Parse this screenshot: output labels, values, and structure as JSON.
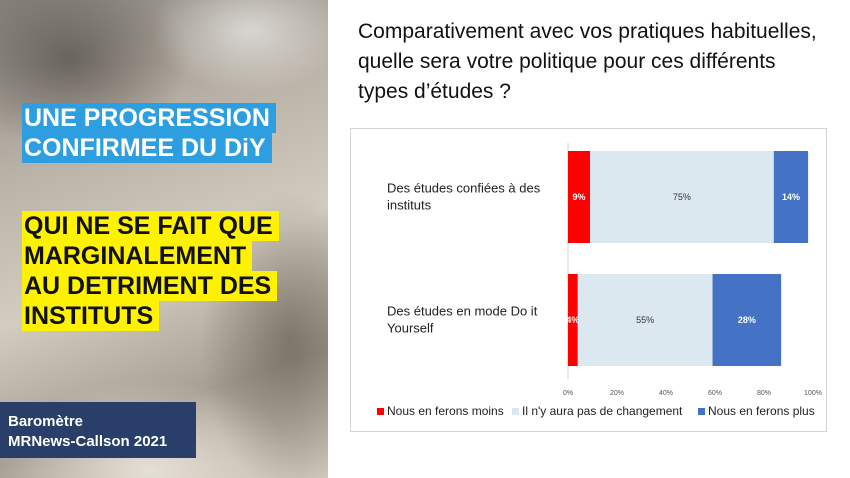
{
  "left": {
    "headline_blue": [
      "UNE PROGRESSION",
      "CONFIRMEE DU DiY"
    ],
    "headline_yellow": [
      "QUI NE SE FAIT QUE",
      "MARGINALEMENT",
      "AU DETRIMENT DES",
      "INSTITUTS"
    ],
    "footer": [
      "Baromètre",
      "MRNews-Callson 2021"
    ]
  },
  "question": "Comparativement avec vos pratiques habituelles, quelle sera votre politique pour ces différents types d’études ?",
  "chart_data": {
    "type": "bar",
    "orientation": "horizontal",
    "stacked": "100%",
    "categories": [
      [
        "Des études confiées à des",
        "instituts"
      ],
      [
        "Des études en mode Do it",
        "Yourself"
      ]
    ],
    "series": [
      {
        "name": "Nous en ferons moins",
        "color": "#ff0000",
        "label_color": "#ffffff",
        "values": [
          9,
          4
        ]
      },
      {
        "name": "Il n'y aura pas de changement",
        "color": "#dbe8f0",
        "label_color": "#333333",
        "values": [
          75,
          55
        ]
      },
      {
        "name": "Nous en ferons plus",
        "color": "#4472c4",
        "label_color": "#ffffff",
        "values": [
          14,
          28
        ]
      }
    ],
    "value_labels": [
      [
        "9%",
        "75%",
        "14%"
      ],
      [
        "4%",
        "55%",
        "28%"
      ]
    ],
    "x_ticks": [
      "0%",
      "20%",
      "40%",
      "60%",
      "80%",
      "100%"
    ],
    "xlim": [
      0,
      100
    ],
    "legend_position": "bottom",
    "grid": false
  }
}
